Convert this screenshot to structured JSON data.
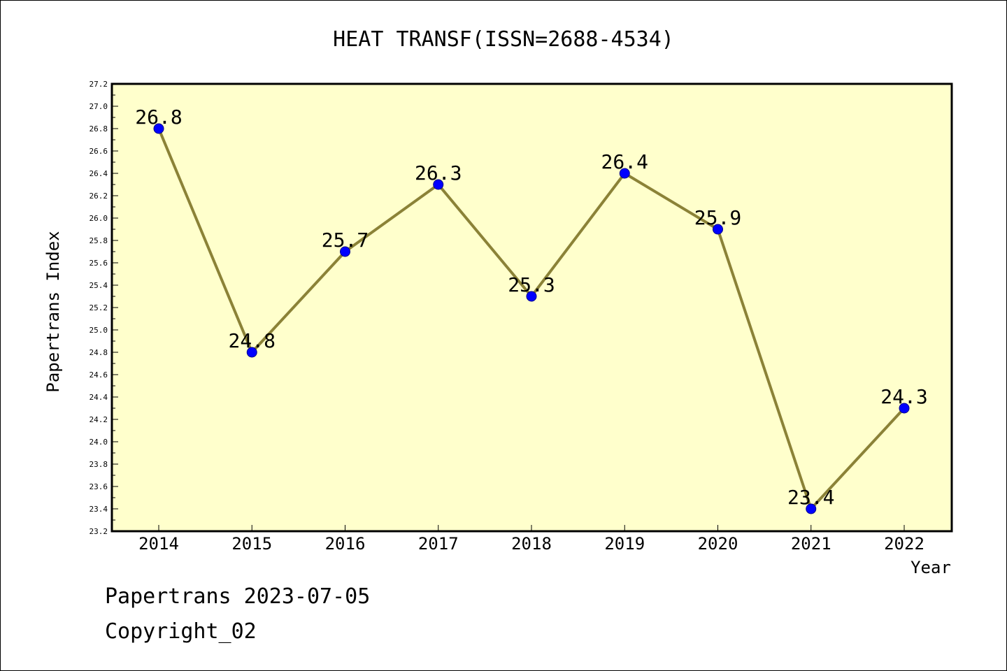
{
  "chart_data": {
    "type": "line",
    "title": "HEAT TRANSF(ISSN=2688-4534)",
    "xlabel": "Year",
    "ylabel": "Papertrans Index",
    "categories": [
      "2014",
      "2015",
      "2016",
      "2017",
      "2018",
      "2019",
      "2020",
      "2021",
      "2022"
    ],
    "series": [
      {
        "values": [
          26.8,
          24.8,
          25.7,
          26.3,
          25.3,
          26.4,
          25.9,
          23.4,
          24.3
        ],
        "labels": [
          "26.8",
          "24.8",
          "25.7",
          "26.3",
          "25.3",
          "26.4",
          "25.9",
          "23.4",
          "24.3"
        ]
      }
    ],
    "ylim": [
      23.2,
      27.2
    ],
    "yticks": [
      "23.2",
      "23.4",
      "23.6",
      "23.8",
      "24.0",
      "24.2",
      "24.4",
      "24.6",
      "24.8",
      "25.0",
      "25.2",
      "25.4",
      "25.6",
      "25.8",
      "26.0",
      "26.2",
      "26.4",
      "26.6",
      "26.8",
      "27.0",
      "27.2"
    ],
    "grid": false,
    "legend": "none",
    "colors": {
      "plot_background": "#ffffcc",
      "line": "#8b8237",
      "marker": "#0000ff"
    }
  },
  "footer": {
    "line1": "Papertrans 2023-07-05",
    "line2": "Copyright_02"
  }
}
